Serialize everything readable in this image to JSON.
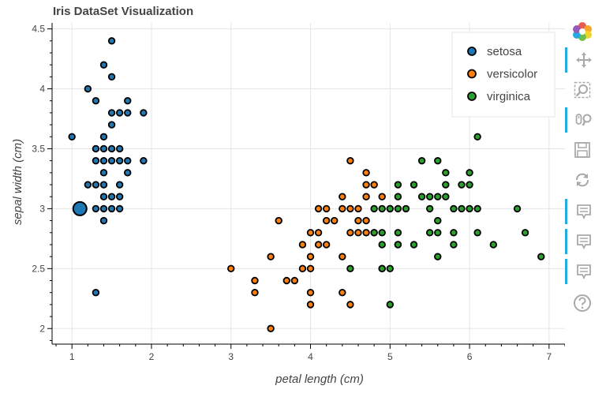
{
  "chart_data": {
    "type": "scatter",
    "title": "Iris DataSet Visualization",
    "xlabel": "petal length (cm)",
    "ylabel": "sepal width (cm)",
    "xlim": [
      0.75,
      7.2
    ],
    "ylim": [
      1.87,
      4.55
    ],
    "x_ticks": [
      1,
      2,
      3,
      4,
      5,
      6,
      7
    ],
    "y_ticks": [
      2,
      2.5,
      3,
      3.5,
      4,
      4.5
    ],
    "x_tick_labels": [
      "1",
      "2",
      "3",
      "4",
      "5",
      "6",
      "7"
    ],
    "y_tick_labels": [
      "2",
      "2.5",
      "3",
      "3.5",
      "4",
      "4.5"
    ],
    "grid": true,
    "legend_position": "top-right",
    "series": [
      {
        "name": "setosa",
        "color": "#1f77b4",
        "points": [
          [
            1.0,
            3.6
          ],
          [
            1.1,
            3.0
          ],
          [
            1.2,
            4.0
          ],
          [
            1.2,
            3.2
          ],
          [
            1.3,
            3.9
          ],
          [
            1.3,
            3.5
          ],
          [
            1.3,
            3.4
          ],
          [
            1.3,
            3.2
          ],
          [
            1.3,
            3.0
          ],
          [
            1.3,
            2.3
          ],
          [
            1.4,
            4.2
          ],
          [
            1.4,
            3.6
          ],
          [
            1.4,
            3.5
          ],
          [
            1.4,
            3.4
          ],
          [
            1.4,
            3.3
          ],
          [
            1.4,
            3.2
          ],
          [
            1.4,
            3.1
          ],
          [
            1.4,
            3.0
          ],
          [
            1.4,
            2.9
          ],
          [
            1.5,
            4.4
          ],
          [
            1.5,
            4.1
          ],
          [
            1.5,
            3.8
          ],
          [
            1.5,
            3.7
          ],
          [
            1.5,
            3.5
          ],
          [
            1.5,
            3.4
          ],
          [
            1.5,
            3.1
          ],
          [
            1.5,
            3.0
          ],
          [
            1.6,
            3.8
          ],
          [
            1.6,
            3.5
          ],
          [
            1.6,
            3.4
          ],
          [
            1.6,
            3.2
          ],
          [
            1.6,
            3.1
          ],
          [
            1.6,
            3.0
          ],
          [
            1.7,
            3.9
          ],
          [
            1.7,
            3.8
          ],
          [
            1.7,
            3.4
          ],
          [
            1.7,
            3.3
          ],
          [
            1.9,
            3.8
          ],
          [
            1.9,
            3.4
          ]
        ],
        "sizes": [
          1,
          4,
          1,
          1,
          1,
          1,
          1,
          1,
          1,
          1,
          1,
          1,
          1,
          1,
          1,
          1,
          1,
          1,
          1,
          1,
          1,
          1,
          1,
          1,
          1,
          1,
          1,
          1,
          1,
          1,
          1,
          1,
          1,
          1,
          1,
          1,
          1,
          1,
          1
        ]
      },
      {
        "name": "versicolor",
        "color": "#ff7f0e",
        "points": [
          [
            3.0,
            2.5
          ],
          [
            3.3,
            2.4
          ],
          [
            3.3,
            2.3
          ],
          [
            3.5,
            2.6
          ],
          [
            3.5,
            2.0
          ],
          [
            3.6,
            2.9
          ],
          [
            3.7,
            2.4
          ],
          [
            3.8,
            2.4
          ],
          [
            3.9,
            2.7
          ],
          [
            3.9,
            2.5
          ],
          [
            4.0,
            2.8
          ],
          [
            4.0,
            2.6
          ],
          [
            4.0,
            2.5
          ],
          [
            4.0,
            2.3
          ],
          [
            4.0,
            2.2
          ],
          [
            4.1,
            3.0
          ],
          [
            4.1,
            2.8
          ],
          [
            4.1,
            2.7
          ],
          [
            4.2,
            3.0
          ],
          [
            4.2,
            2.9
          ],
          [
            4.2,
            2.7
          ],
          [
            4.3,
            2.9
          ],
          [
            4.4,
            3.1
          ],
          [
            4.4,
            3.0
          ],
          [
            4.4,
            2.6
          ],
          [
            4.4,
            2.3
          ],
          [
            4.5,
            3.4
          ],
          [
            4.5,
            3.0
          ],
          [
            4.5,
            2.8
          ],
          [
            4.5,
            2.2
          ],
          [
            4.6,
            3.0
          ],
          [
            4.6,
            2.9
          ],
          [
            4.6,
            2.8
          ],
          [
            4.7,
            3.3
          ],
          [
            4.7,
            3.2
          ],
          [
            4.7,
            3.1
          ],
          [
            4.7,
            2.9
          ],
          [
            4.7,
            2.8
          ],
          [
            4.8,
            3.2
          ],
          [
            4.8,
            2.8
          ],
          [
            4.9,
            3.1
          ],
          [
            4.9,
            2.5
          ],
          [
            5.0,
            3.0
          ],
          [
            5.1,
            2.7
          ]
        ],
        "sizes": [
          1,
          1,
          1,
          1,
          1,
          1,
          1,
          1,
          1,
          1,
          1,
          1,
          1,
          1,
          1,
          1,
          1,
          1,
          1,
          1,
          1,
          1,
          1,
          1,
          1,
          1,
          1,
          1,
          1,
          1,
          1,
          1,
          1,
          1,
          1,
          1,
          1,
          1,
          1,
          1,
          1,
          1,
          1,
          1
        ]
      },
      {
        "name": "virginica",
        "color": "#2ca02c",
        "points": [
          [
            4.5,
            2.5
          ],
          [
            4.8,
            3.0
          ],
          [
            4.8,
            2.8
          ],
          [
            4.9,
            3.0
          ],
          [
            4.9,
            2.8
          ],
          [
            4.9,
            2.7
          ],
          [
            4.9,
            2.5
          ],
          [
            5.0,
            3.0
          ],
          [
            5.0,
            2.5
          ],
          [
            5.0,
            2.2
          ],
          [
            5.1,
            3.2
          ],
          [
            5.1,
            3.1
          ],
          [
            5.1,
            3.0
          ],
          [
            5.1,
            2.8
          ],
          [
            5.1,
            2.7
          ],
          [
            5.2,
            3.0
          ],
          [
            5.3,
            3.2
          ],
          [
            5.3,
            2.7
          ],
          [
            5.4,
            3.4
          ],
          [
            5.4,
            3.1
          ],
          [
            5.5,
            3.1
          ],
          [
            5.5,
            3.0
          ],
          [
            5.5,
            2.8
          ],
          [
            5.6,
            3.4
          ],
          [
            5.6,
            3.1
          ],
          [
            5.6,
            2.9
          ],
          [
            5.6,
            2.8
          ],
          [
            5.6,
            2.6
          ],
          [
            5.7,
            3.3
          ],
          [
            5.7,
            3.2
          ],
          [
            5.7,
            3.1
          ],
          [
            5.8,
            3.0
          ],
          [
            5.8,
            2.8
          ],
          [
            5.8,
            2.7
          ],
          [
            5.9,
            3.2
          ],
          [
            5.9,
            3.0
          ],
          [
            6.0,
            3.3
          ],
          [
            6.0,
            3.2
          ],
          [
            6.0,
            3.0
          ],
          [
            6.1,
            3.6
          ],
          [
            6.1,
            3.0
          ],
          [
            6.1,
            2.8
          ],
          [
            6.3,
            2.7
          ],
          [
            6.6,
            3.0
          ],
          [
            6.7,
            2.8
          ],
          [
            6.9,
            2.6
          ]
        ],
        "sizes": [
          1,
          1,
          1,
          1,
          1,
          1,
          1,
          1,
          1,
          1,
          1,
          1,
          1,
          1,
          1,
          1,
          1,
          1,
          1,
          1,
          1,
          1,
          1,
          1,
          1,
          1,
          1,
          1,
          1,
          1,
          1,
          1,
          1,
          1,
          1,
          1,
          1,
          1,
          1,
          1,
          1,
          1,
          1,
          1,
          1,
          1
        ]
      }
    ]
  },
  "toolbar": {
    "tools": [
      {
        "name": "bokeh-logo",
        "icon": "logo-icon",
        "active": false
      },
      {
        "name": "pan-tool",
        "icon": "move-icon",
        "active": true
      },
      {
        "name": "box-zoom-tool",
        "icon": "box-zoom-icon",
        "active": false
      },
      {
        "name": "wheel-zoom-tool",
        "icon": "wheel-zoom-icon",
        "active": true
      },
      {
        "name": "save-tool",
        "icon": "save-icon",
        "active": false
      },
      {
        "name": "reset-tool",
        "icon": "reset-icon",
        "active": false
      },
      {
        "name": "hover-tool-1",
        "icon": "hover-icon",
        "active": true
      },
      {
        "name": "hover-tool-2",
        "icon": "hover-icon",
        "active": true
      },
      {
        "name": "hover-tool-3",
        "icon": "hover-icon",
        "active": true
      },
      {
        "name": "help-tool",
        "icon": "help-icon",
        "active": false
      }
    ]
  }
}
